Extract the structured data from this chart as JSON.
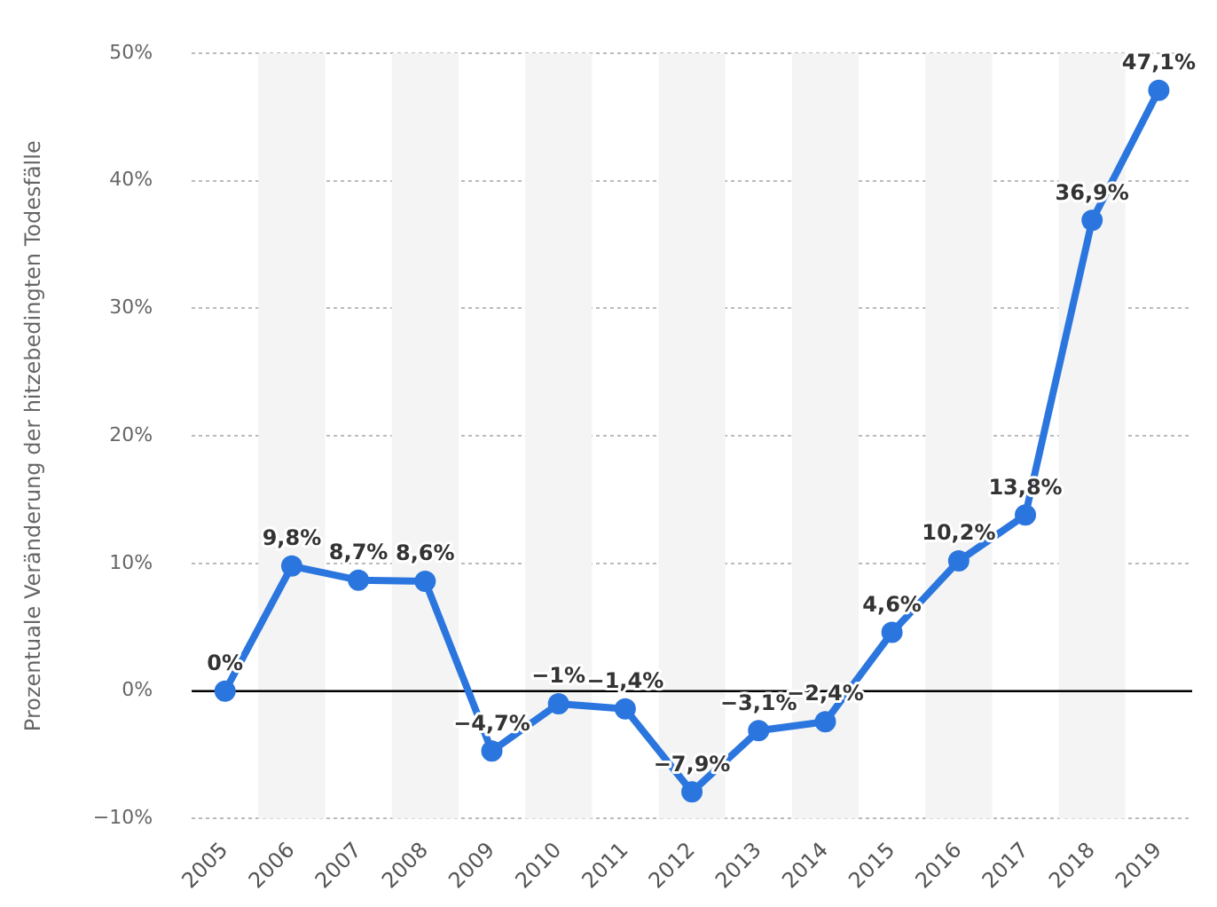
{
  "chart_data": {
    "type": "line",
    "ylabel": "Prozentuale Veränderung der hitzebedingten Todesfälle",
    "categories": [
      "2005",
      "2006",
      "2007",
      "2008",
      "2009",
      "2010",
      "2011",
      "2012",
      "2013",
      "2014",
      "2015",
      "2016",
      "2017",
      "2018",
      "2019"
    ],
    "series": [
      {
        "color": "#2b76de",
        "values": [
          0,
          9.8,
          8.7,
          8.6,
          -4.7,
          -1,
          -1.4,
          -7.9,
          -3.1,
          -2.4,
          4.6,
          10.2,
          13.8,
          36.9,
          47.1
        ],
        "value_labels": [
          "0%",
          "9,8%",
          "8,7%",
          "8,6%",
          "−4,7%",
          "−1%",
          "−1,4%",
          "−7,9%",
          "−3,1%",
          "−2,4%",
          "4,6%",
          "10,2%",
          "13,8%",
          "36,9%",
          "47,1%"
        ]
      }
    ],
    "ylim": [
      -10,
      50
    ],
    "yticks": [
      {
        "value": -10,
        "label": "−10%"
      },
      {
        "value": 0,
        "label": "0%"
      },
      {
        "value": 10,
        "label": "10%"
      },
      {
        "value": 20,
        "label": "20%"
      },
      {
        "value": 30,
        "label": "30%"
      },
      {
        "value": 40,
        "label": "40%"
      },
      {
        "value": 50,
        "label": "50%"
      }
    ],
    "grid": "y",
    "legend": false,
    "marker": "circle",
    "line_style": "solid",
    "ref_lines": [
      {
        "axis": "y",
        "value": 0,
        "color": "#000000"
      }
    ],
    "bands": [
      {
        "axis": "x",
        "from": "2006",
        "to": "2006",
        "color": "#f4f4f4"
      },
      {
        "axis": "x",
        "from": "2008",
        "to": "2008",
        "color": "#f4f4f4"
      },
      {
        "axis": "x",
        "from": "2010",
        "to": "2010",
        "color": "#f4f4f4"
      },
      {
        "axis": "x",
        "from": "2012",
        "to": "2012",
        "color": "#f4f4f4"
      },
      {
        "axis": "x",
        "from": "2014",
        "to": "2014",
        "color": "#f4f4f4"
      },
      {
        "axis": "x",
        "from": "2016",
        "to": "2016",
        "color": "#f4f4f4"
      },
      {
        "axis": "x",
        "from": "2018",
        "to": "2018",
        "color": "#f4f4f4"
      }
    ]
  }
}
